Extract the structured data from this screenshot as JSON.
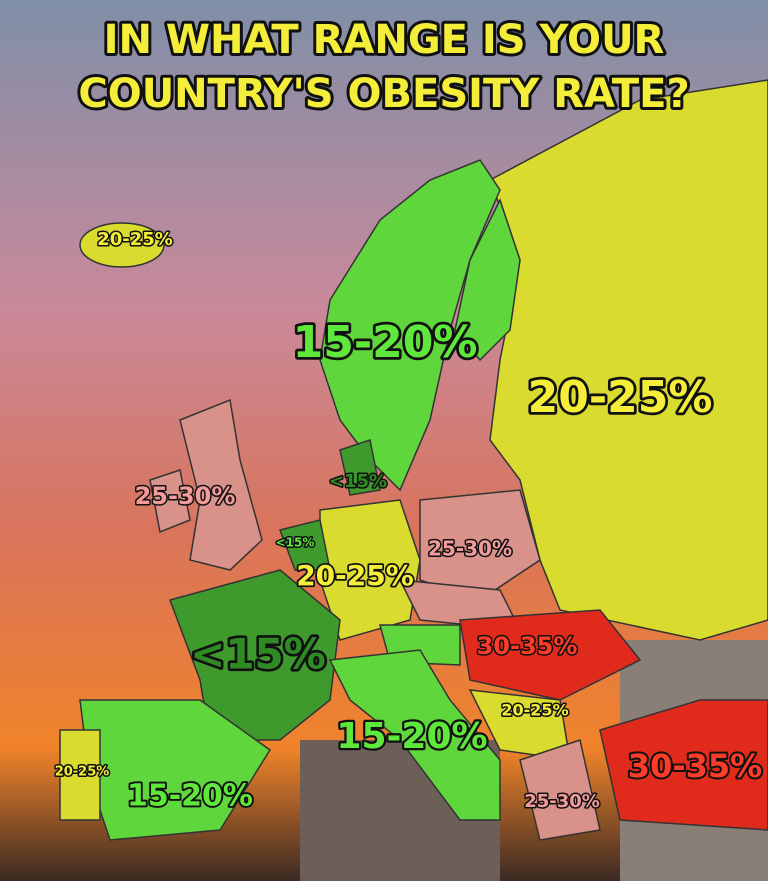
{
  "title": [
    "IN WHAT RANGE IS YOUR",
    "COUNTRY'S OBESITY RATE?"
  ],
  "labels": [
    "20-25%",
    "15-20%",
    "20-25%",
    "25-30%",
    "<15%",
    "<15%",
    "25-30%",
    "20-25%",
    "<15%",
    "30-35%",
    "20-25%",
    "15-20%",
    "20-25%",
    "15-20%",
    "30-35%",
    "25-30%"
  ]
}
